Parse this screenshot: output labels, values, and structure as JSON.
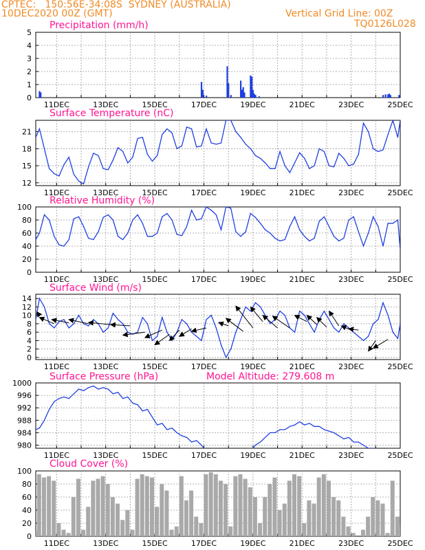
{
  "header": {
    "line1": "CPTEC:   150:56E-34:08S  SYDNEY (AUSTRALIA)",
    "line2": "10DEC2020 00Z (GMT)",
    "grid_note": "Vertical Grid Line: 00Z",
    "code": "TQ0126L028",
    "model_altitude": "Model Altitude: 279.608 m"
  },
  "colors": {
    "header": "#f08a24",
    "title": "#ff1493",
    "line": "#1f3fe0",
    "cloud": "#a9a9a9",
    "grid": "#999999"
  },
  "chart_data": [
    {
      "id": "precip",
      "type": "bar",
      "title": "Precipitation (mm/h)",
      "ylim": [
        0,
        5
      ],
      "yticks": [
        0,
        1,
        2,
        3,
        4,
        5
      ],
      "grid": true,
      "x_day_range": [
        10.15,
        25.0
      ],
      "xtick_labels": [
        "11DEC",
        "13DEC",
        "15DEC",
        "17DEC",
        "19DEC",
        "21DEC",
        "23DEC",
        "25DEC"
      ],
      "x": [
        10.3,
        10.35,
        16.9,
        16.95,
        17.1,
        17.95,
        18.0,
        18.1,
        18.5,
        18.55,
        18.6,
        18.65,
        18.9,
        18.95,
        19.0,
        19.05,
        19.1,
        19.25,
        24.3,
        24.4,
        24.5,
        24.55,
        24.6,
        24.95
      ],
      "values": [
        0.5,
        0.4,
        1.2,
        0.6,
        0.15,
        2.4,
        1.1,
        0.2,
        1.3,
        0.6,
        0.8,
        0.4,
        1.7,
        1.6,
        0.6,
        0.3,
        0.2,
        0.1,
        0.2,
        0.25,
        0.25,
        0.3,
        0.2,
        0.2
      ]
    },
    {
      "id": "temp",
      "type": "line",
      "title": "Surface Temperature (nC)",
      "ylim": [
        11.5,
        23
      ],
      "yticks": [
        12,
        15,
        18,
        21
      ],
      "grid": true,
      "x_day_range": [
        10.15,
        25.0
      ],
      "xtick_labels": [
        "11DEC",
        "13DEC",
        "15DEC",
        "17DEC",
        "19DEC",
        "21DEC",
        "23DEC",
        "25DEC"
      ],
      "x": [
        10.15,
        10.3,
        10.5,
        10.7,
        10.9,
        11.1,
        11.3,
        11.5,
        11.7,
        11.9,
        12.1,
        12.3,
        12.5,
        12.7,
        12.9,
        13.1,
        13.3,
        13.5,
        13.7,
        13.9,
        14.1,
        14.3,
        14.5,
        14.7,
        14.9,
        15.1,
        15.3,
        15.5,
        15.7,
        15.9,
        16.1,
        16.3,
        16.5,
        16.7,
        16.9,
        17.1,
        17.3,
        17.5,
        17.7,
        17.9,
        18.1,
        18.3,
        18.5,
        18.7,
        18.9,
        19.1,
        19.3,
        19.5,
        19.7,
        19.9,
        20.1,
        20.3,
        20.5,
        20.7,
        20.9,
        21.1,
        21.3,
        21.5,
        21.7,
        21.9,
        22.1,
        22.3,
        22.5,
        22.7,
        22.9,
        23.1,
        23.3,
        23.5,
        23.7,
        23.9,
        24.1,
        24.3,
        24.5,
        24.7,
        24.9,
        25.0
      ],
      "values": [
        20,
        21.5,
        18,
        14.5,
        13.6,
        13.2,
        15.2,
        16.5,
        13.5,
        12.3,
        11.8,
        14.8,
        17.2,
        16.8,
        14.5,
        14.3,
        16,
        18.2,
        17.5,
        15.5,
        16.5,
        19.8,
        20,
        17,
        15.8,
        16.8,
        20.5,
        21.5,
        20.8,
        18,
        18.5,
        21.8,
        21.5,
        18.3,
        18.5,
        21.5,
        19,
        18.8,
        19,
        23,
        23,
        21,
        20,
        18.8,
        18,
        16.8,
        16.3,
        15.5,
        14.5,
        14.5,
        17.5,
        15,
        13.8,
        15.5,
        17.3,
        16.3,
        14.5,
        15,
        18,
        17.5,
        15,
        14.8,
        17.2,
        16.3,
        15,
        15.3,
        17,
        22.5,
        21,
        18,
        17.5,
        17.8,
        20.5,
        23,
        20,
        23
      ]
    },
    {
      "id": "rh",
      "type": "line",
      "title": "Relative Humidity (%)",
      "ylim": [
        0,
        100
      ],
      "yticks": [
        0,
        20,
        40,
        60,
        80,
        100
      ],
      "grid": true,
      "x_day_range": [
        10.15,
        25.0
      ],
      "xtick_labels": [
        "11DEC",
        "13DEC",
        "15DEC",
        "17DEC",
        "19DEC",
        "21DEC",
        "23DEC",
        "25DEC"
      ],
      "x": [
        10.15,
        10.3,
        10.5,
        10.7,
        10.9,
        11.1,
        11.3,
        11.5,
        11.7,
        11.9,
        12.1,
        12.3,
        12.5,
        12.7,
        12.9,
        13.1,
        13.3,
        13.5,
        13.7,
        13.9,
        14.1,
        14.3,
        14.5,
        14.7,
        14.9,
        15.1,
        15.3,
        15.5,
        15.7,
        15.9,
        16.1,
        16.3,
        16.5,
        16.7,
        16.9,
        17.1,
        17.3,
        17.5,
        17.7,
        17.9,
        18.1,
        18.3,
        18.5,
        18.7,
        18.9,
        19.1,
        19.3,
        19.5,
        19.7,
        19.9,
        20.1,
        20.3,
        20.5,
        20.7,
        20.9,
        21.1,
        21.3,
        21.5,
        21.7,
        21.9,
        22.1,
        22.3,
        22.5,
        22.7,
        22.9,
        23.1,
        23.3,
        23.5,
        23.7,
        23.9,
        24.1,
        24.3,
        24.5,
        24.7,
        24.9,
        25.0
      ],
      "values": [
        50,
        60,
        88,
        80,
        55,
        42,
        40,
        50,
        82,
        85,
        70,
        52,
        50,
        62,
        84,
        88,
        80,
        55,
        50,
        60,
        80,
        88,
        75,
        55,
        55,
        60,
        85,
        90,
        80,
        58,
        56,
        70,
        95,
        80,
        82,
        100,
        95,
        88,
        65,
        100,
        98,
        62,
        55,
        62,
        90,
        84,
        75,
        65,
        60,
        52,
        48,
        50,
        70,
        85,
        65,
        55,
        48,
        52,
        78,
        85,
        70,
        55,
        48,
        52,
        80,
        85,
        62,
        40,
        60,
        85,
        70,
        40,
        75,
        75,
        80,
        35
      ]
    },
    {
      "id": "wind",
      "type": "line",
      "title": "Surface Wind (m/s)",
      "ylim": [
        -0.5,
        15
      ],
      "yticks": [
        0,
        2,
        4,
        6,
        8,
        10,
        12,
        14
      ],
      "grid": true,
      "x_day_range": [
        10.15,
        25.0
      ],
      "xtick_labels": [
        "11DEC",
        "13DEC",
        "15DEC",
        "17DEC",
        "19DEC",
        "21DEC",
        "23DEC",
        "25DEC"
      ],
      "x": [
        10.15,
        10.3,
        10.5,
        10.7,
        10.9,
        11.1,
        11.3,
        11.5,
        11.7,
        11.9,
        12.1,
        12.3,
        12.5,
        12.7,
        12.9,
        13.1,
        13.3,
        13.5,
        13.7,
        13.9,
        14.1,
        14.3,
        14.5,
        14.7,
        14.9,
        15.1,
        15.3,
        15.5,
        15.7,
        15.9,
        16.1,
        16.3,
        16.5,
        16.7,
        16.9,
        17.1,
        17.3,
        17.5,
        17.7,
        17.9,
        18.1,
        18.3,
        18.5,
        18.7,
        18.9,
        19.1,
        19.3,
        19.5,
        19.7,
        19.9,
        20.1,
        20.3,
        20.5,
        20.7,
        20.9,
        21.1,
        21.3,
        21.5,
        21.7,
        21.9,
        22.1,
        22.3,
        22.5,
        22.7,
        22.9,
        23.1,
        23.3,
        23.5,
        23.7,
        23.9,
        24.1,
        24.3,
        24.5,
        24.7,
        24.9,
        25.0
      ],
      "values": [
        9,
        14,
        12,
        8,
        7,
        8.5,
        9,
        7,
        8,
        10,
        8,
        7.5,
        9,
        8,
        6,
        7,
        10.5,
        9,
        8,
        6,
        5.5,
        6,
        9.5,
        8,
        4,
        5,
        9.5,
        6,
        4,
        6,
        9,
        8,
        6,
        5,
        4,
        9,
        10,
        7,
        3,
        0,
        2,
        6,
        9,
        12,
        11,
        13,
        12,
        10,
        8,
        9,
        11,
        10,
        7,
        6,
        11,
        10,
        8,
        6,
        9,
        11,
        9,
        7,
        6,
        8,
        7,
        6,
        5,
        4,
        5,
        8,
        9,
        13,
        10,
        6,
        4.5,
        8
      ]
    },
    {
      "id": "pressure",
      "type": "line",
      "title": "Surface Pressure (hPa)",
      "ylim": [
        979,
        1000
      ],
      "yticks": [
        980,
        984,
        988,
        992,
        996,
        1000
      ],
      "grid": true,
      "x_day_range": [
        10.15,
        25.0
      ],
      "xtick_labels": [
        "11DEC",
        "13DEC",
        "15DEC",
        "17DEC",
        "19DEC",
        "21DEC",
        "23DEC",
        "25DEC"
      ],
      "x": [
        10.15,
        10.3,
        10.5,
        10.7,
        10.9,
        11.1,
        11.3,
        11.5,
        11.7,
        11.9,
        12.1,
        12.3,
        12.5,
        12.7,
        12.9,
        13.1,
        13.3,
        13.5,
        13.7,
        13.9,
        14.1,
        14.3,
        14.5,
        14.7,
        14.9,
        15.1,
        15.3,
        15.5,
        15.7,
        15.9,
        16.1,
        16.3,
        16.5,
        16.7,
        16.9,
        17.1,
        17.3,
        17.5,
        17.7,
        17.9,
        18.1,
        18.3,
        18.5,
        18.7,
        18.9,
        19.1,
        19.3,
        19.5,
        19.7,
        19.9,
        20.1,
        20.3,
        20.5,
        20.7,
        20.9,
        21.1,
        21.3,
        21.5,
        21.7,
        21.9,
        22.1,
        22.3,
        22.5,
        22.7,
        22.9,
        23.1,
        23.3,
        23.5,
        23.7,
        23.9,
        24.1,
        24.3,
        24.5,
        24.7,
        24.9,
        25.0
      ],
      "values": [
        985,
        985.5,
        988,
        991.5,
        994,
        995,
        995.5,
        995,
        996.5,
        998,
        997.5,
        998.5,
        999,
        998,
        998.5,
        998,
        996.5,
        997,
        995,
        995.5,
        993.5,
        993,
        991,
        991.5,
        989,
        986.5,
        987,
        985,
        985.5,
        984,
        983,
        982.5,
        981,
        981.5,
        980,
        978,
        null,
        null,
        null,
        null,
        null,
        null,
        null,
        null,
        978,
        980,
        981,
        982.5,
        984,
        984,
        985,
        985,
        986,
        986.5,
        987.5,
        986.5,
        987,
        986,
        986,
        985,
        984.5,
        984,
        983,
        982,
        982.5,
        981,
        981,
        980,
        979,
        979,
        null,
        null,
        null,
        null,
        null,
        null
      ]
    },
    {
      "id": "cloud",
      "type": "area",
      "title": "Cloud Cover (%)",
      "ylim": [
        0,
        100
      ],
      "yticks": [
        0,
        20,
        40,
        60,
        80,
        100
      ],
      "grid": true,
      "x_day_range": [
        10.15,
        25.0
      ],
      "xtick_labels": [
        "11DEC",
        "13DEC",
        "15DEC",
        "17DEC",
        "19DEC",
        "21DEC",
        "23DEC",
        "25DEC"
      ],
      "x": [
        10.15,
        10.3,
        10.5,
        10.7,
        10.9,
        11.1,
        11.3,
        11.5,
        11.7,
        11.9,
        12.1,
        12.3,
        12.5,
        12.7,
        12.9,
        13.1,
        13.3,
        13.5,
        13.7,
        13.9,
        14.1,
        14.3,
        14.5,
        14.7,
        14.9,
        15.1,
        15.3,
        15.5,
        15.7,
        15.9,
        16.1,
        16.3,
        16.5,
        16.7,
        16.9,
        17.1,
        17.3,
        17.5,
        17.7,
        17.9,
        18.1,
        18.3,
        18.5,
        18.7,
        18.9,
        19.1,
        19.3,
        19.5,
        19.7,
        19.9,
        20.1,
        20.3,
        20.5,
        20.7,
        20.9,
        21.1,
        21.3,
        21.5,
        21.7,
        21.9,
        22.1,
        22.3,
        22.5,
        22.7,
        22.9,
        23.1,
        23.3,
        23.5,
        23.7,
        23.9,
        24.1,
        24.3,
        24.5,
        24.7,
        24.9,
        25.0
      ],
      "values": [
        8,
        95,
        90,
        92,
        85,
        20,
        10,
        5,
        60,
        88,
        10,
        45,
        85,
        88,
        92,
        80,
        60,
        50,
        25,
        40,
        10,
        88,
        95,
        92,
        90,
        45,
        80,
        70,
        10,
        15,
        92,
        55,
        70,
        30,
        20,
        95,
        98,
        95,
        85,
        80,
        15,
        92,
        95,
        88,
        75,
        60,
        20,
        60,
        80,
        90,
        40,
        50,
        85,
        95,
        92,
        20,
        55,
        50,
        90,
        95,
        85,
        60,
        55,
        30,
        15,
        5,
        0,
        10,
        30,
        60,
        55,
        50,
        5,
        85,
        30,
        15
      ]
    }
  ],
  "wind_arrows": [
    {
      "x": 10.3,
      "y": 10.0,
      "to_x": 10.2,
      "to_y": 10.8
    },
    {
      "x": 10.9,
      "y": 8.0,
      "to_x": 10.3,
      "to_y": 9.5
    },
    {
      "x": 11.5,
      "y": 8.2,
      "to_x": 10.8,
      "to_y": 9.0
    },
    {
      "x": 12.3,
      "y": 8.0,
      "to_x": 11.5,
      "to_y": 9.0
    },
    {
      "x": 13.2,
      "y": 7.8,
      "to_x": 12.3,
      "to_y": 8.3
    },
    {
      "x": 14.0,
      "y": 7.5,
      "to_x": 13.2,
      "to_y": 7.8
    },
    {
      "x": 14.6,
      "y": 6.0,
      "to_x": 13.7,
      "to_y": 5.3
    },
    {
      "x": 15.3,
      "y": 6.5,
      "to_x": 14.6,
      "to_y": 4.7
    },
    {
      "x": 15.6,
      "y": 5.5,
      "to_x": 15.0,
      "to_y": 3.0
    },
    {
      "x": 16.0,
      "y": 6.5,
      "to_x": 15.6,
      "to_y": 4.0
    },
    {
      "x": 16.5,
      "y": 6.8,
      "to_x": 16.0,
      "to_y": 5.0
    },
    {
      "x": 17.1,
      "y": 7.0,
      "to_x": 16.5,
      "to_y": 6.2
    },
    {
      "x": 18.0,
      "y": 7.5,
      "to_x": 17.6,
      "to_y": 8.3
    },
    {
      "x": 18.6,
      "y": 6.2,
      "to_x": 17.9,
      "to_y": 9.3
    },
    {
      "x": 19.0,
      "y": 7.0,
      "to_x": 18.3,
      "to_y": 12.2
    },
    {
      "x": 19.4,
      "y": 8.5,
      "to_x": 18.9,
      "to_y": 12.0
    },
    {
      "x": 20.0,
      "y": 7.0,
      "to_x": 19.4,
      "to_y": 10.0
    },
    {
      "x": 20.5,
      "y": 7.0,
      "to_x": 19.8,
      "to_y": 9.8
    },
    {
      "x": 21.2,
      "y": 8.5,
      "to_x": 20.7,
      "to_y": 10.0
    },
    {
      "x": 21.6,
      "y": 7.8,
      "to_x": 21.2,
      "to_y": 10.0
    },
    {
      "x": 22.0,
      "y": 7.2,
      "to_x": 21.6,
      "to_y": 9.5
    },
    {
      "x": 22.5,
      "y": 7.5,
      "to_x": 22.1,
      "to_y": 11.0
    },
    {
      "x": 23.0,
      "y": 6.5,
      "to_x": 22.6,
      "to_y": 7.5
    },
    {
      "x": 23.3,
      "y": 6.5,
      "to_x": 22.9,
      "to_y": 6.8
    },
    {
      "x": 24.0,
      "y": 4.0,
      "to_x": 23.7,
      "to_y": 1.5
    },
    {
      "x": 24.5,
      "y": 4.3,
      "to_x": 23.9,
      "to_y": 2.2
    }
  ]
}
